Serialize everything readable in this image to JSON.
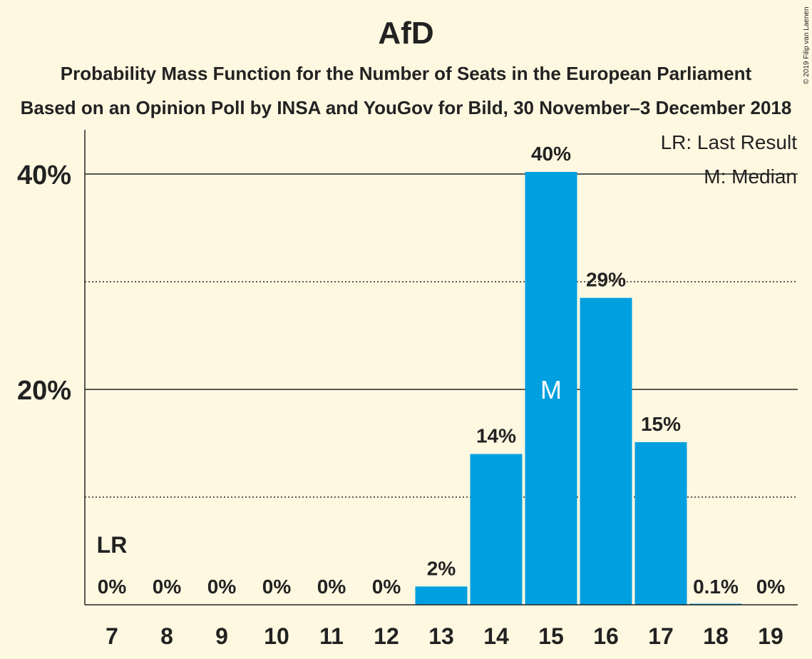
{
  "header": {
    "title": "AfD",
    "subtitle1": "Probability Mass Function for the Number of Seats in the European Parliament",
    "subtitle2": "Based on an Opinion Poll by INSA and YouGov for Bild, 30 November–3 December 2018",
    "copyright": "© 2019 Filip van Laenen"
  },
  "chart_data": {
    "type": "bar",
    "categories": [
      "7",
      "8",
      "9",
      "10",
      "11",
      "12",
      "13",
      "14",
      "15",
      "16",
      "17",
      "18",
      "19"
    ],
    "values": [
      0,
      0,
      0,
      0,
      0,
      0,
      1.7,
      14.0,
      40.2,
      28.5,
      15.1,
      0.1,
      0
    ],
    "labels": [
      "0%",
      "0%",
      "0%",
      "0%",
      "0%",
      "0%",
      "2%",
      "14%",
      "40%",
      "29%",
      "15%",
      "0.1%",
      "0%"
    ],
    "ylim": [
      0,
      44
    ],
    "yticks": [
      {
        "value": 20,
        "label": "20%"
      },
      {
        "value": 40,
        "label": "40%"
      }
    ],
    "dotted_gridlines": [
      10,
      30
    ],
    "last_result": {
      "category": "7",
      "label": "LR"
    },
    "median": {
      "category": "15",
      "label": "M"
    },
    "legend": {
      "position": "top-right",
      "items": [
        "LR: Last Result",
        "M: Median"
      ]
    },
    "colors": {
      "bar": "#009FE0",
      "background": "#FFF8E1",
      "text": "#222222"
    }
  }
}
